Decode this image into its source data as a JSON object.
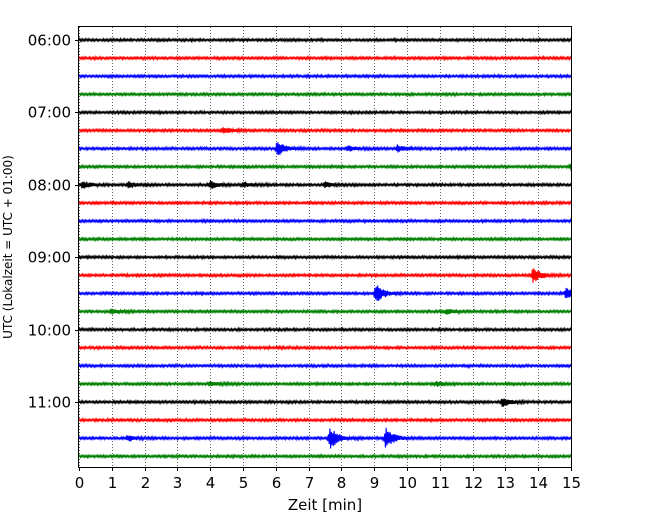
{
  "chart_data": {
    "type": "line",
    "title": "",
    "xlabel": "Zeit  [min]",
    "ylabel": "UTC (Lokalzeit = UTC + 01:00)",
    "xlim": [
      0,
      15
    ],
    "x_ticks": [
      "0",
      "1",
      "2",
      "3",
      "4",
      "5",
      "6",
      "7",
      "8",
      "9",
      "10",
      "11",
      "12",
      "13",
      "14",
      "15"
    ],
    "y_ticks": [
      {
        "label": "06:00",
        "trace_index": 0
      },
      {
        "label": "07:00",
        "trace_index": 4
      },
      {
        "label": "08:00",
        "trace_index": 8
      },
      {
        "label": "09:00",
        "trace_index": 12
      },
      {
        "label": "10:00",
        "trace_index": 16
      },
      {
        "label": "11:00",
        "trace_index": 20
      }
    ],
    "vertical_grid": true,
    "grid_style": "dotted",
    "trace_interval_minutes": 15,
    "first_trace_start": "06:00",
    "colors": [
      "#000000",
      "#ff0000",
      "#0000ff",
      "#008000"
    ],
    "traces": [
      {
        "start": "06:00",
        "color": "#000000",
        "events": []
      },
      {
        "start": "06:15",
        "color": "#ff0000",
        "events": []
      },
      {
        "start": "06:30",
        "color": "#0000ff",
        "events": []
      },
      {
        "start": "06:45",
        "color": "#008000",
        "events": []
      },
      {
        "start": "07:00",
        "color": "#000000",
        "events": []
      },
      {
        "start": "07:15",
        "color": "#ff0000",
        "events": [
          {
            "t": 4.4,
            "amp": 0.3
          }
        ]
      },
      {
        "start": "07:30",
        "color": "#0000ff",
        "events": [
          {
            "t": 6.05,
            "amp": 0.8
          },
          {
            "t": 8.2,
            "amp": 0.3
          },
          {
            "t": 9.7,
            "amp": 0.35
          }
        ]
      },
      {
        "start": "07:45",
        "color": "#008000",
        "events": [
          {
            "t": 15.0,
            "amp": 0.3
          }
        ]
      },
      {
        "start": "08:00",
        "color": "#000000",
        "events": [
          {
            "t": 0.1,
            "amp": 0.4
          },
          {
            "t": 1.5,
            "amp": 0.35
          },
          {
            "t": 4.0,
            "amp": 0.4
          },
          {
            "t": 5.0,
            "amp": 0.3
          },
          {
            "t": 7.5,
            "amp": 0.3
          }
        ]
      },
      {
        "start": "08:15",
        "color": "#ff0000",
        "events": []
      },
      {
        "start": "08:30",
        "color": "#0000ff",
        "events": []
      },
      {
        "start": "08:45",
        "color": "#008000",
        "events": []
      },
      {
        "start": "09:00",
        "color": "#000000",
        "events": []
      },
      {
        "start": "09:15",
        "color": "#ff0000",
        "events": [
          {
            "t": 13.85,
            "amp": 0.85
          }
        ]
      },
      {
        "start": "09:30",
        "color": "#0000ff",
        "events": [
          {
            "t": 9.05,
            "amp": 1.1
          },
          {
            "t": 14.85,
            "amp": 0.55
          }
        ]
      },
      {
        "start": "09:45",
        "color": "#008000",
        "events": [
          {
            "t": 1.0,
            "amp": 0.3
          },
          {
            "t": 11.2,
            "amp": 0.3
          }
        ]
      },
      {
        "start": "10:00",
        "color": "#000000",
        "events": []
      },
      {
        "start": "10:15",
        "color": "#ff0000",
        "events": []
      },
      {
        "start": "10:30",
        "color": "#0000ff",
        "events": []
      },
      {
        "start": "10:45",
        "color": "#008000",
        "events": [
          {
            "t": 4.0,
            "amp": 0.25
          },
          {
            "t": 10.9,
            "amp": 0.25
          }
        ]
      },
      {
        "start": "11:00",
        "color": "#000000",
        "events": [
          {
            "t": 12.9,
            "amp": 0.55
          }
        ]
      },
      {
        "start": "11:15",
        "color": "#ff0000",
        "events": []
      },
      {
        "start": "11:30",
        "color": "#0000ff",
        "events": [
          {
            "t": 1.5,
            "amp": 0.35
          },
          {
            "t": 7.65,
            "amp": 1.35
          },
          {
            "t": 9.35,
            "amp": 1.2
          }
        ]
      },
      {
        "start": "11:45",
        "color": "#008000",
        "events": []
      }
    ]
  }
}
